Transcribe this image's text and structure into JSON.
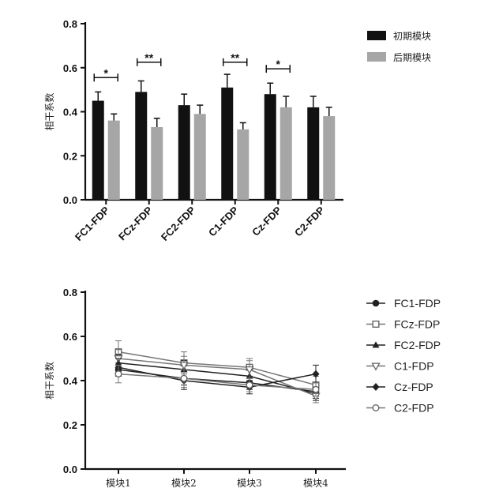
{
  "chart_data": [
    {
      "type": "bar",
      "ylabel": "相干系数",
      "ylim": [
        0,
        0.8
      ],
      "yticks": [
        "0.0",
        "0.2",
        "0.4",
        "0.6",
        "0.8"
      ],
      "ytick_values": [
        0,
        0.2,
        0.4,
        0.6,
        0.8
      ],
      "categories": [
        "FC1-FDP",
        "FCz-FDP",
        "FC2-FDP",
        "C1-FDP",
        "Cz-FDP",
        "C2-FDP"
      ],
      "series": [
        {
          "name": "初期模块",
          "color": "#111111",
          "values": [
            0.45,
            0.49,
            0.43,
            0.51,
            0.48,
            0.42
          ],
          "errors": [
            0.04,
            0.05,
            0.05,
            0.06,
            0.05,
            0.05
          ]
        },
        {
          "name": "后期模块",
          "color": "#a6a6a6",
          "values": [
            0.36,
            0.33,
            0.39,
            0.32,
            0.42,
            0.38
          ],
          "errors": [
            0.03,
            0.04,
            0.04,
            0.03,
            0.05,
            0.04
          ]
        }
      ],
      "significance": [
        {
          "category_index": 0,
          "label": "*",
          "level": 0.555
        },
        {
          "category_index": 1,
          "label": "**",
          "level": 0.625
        },
        {
          "category_index": 3,
          "label": "**",
          "level": 0.625
        },
        {
          "category_index": 4,
          "label": "*",
          "level": 0.595
        }
      ],
      "legend_position": "top-right"
    },
    {
      "type": "line",
      "ylabel": "相干系数",
      "ylim": [
        0,
        0.8
      ],
      "yticks": [
        "0.0",
        "0.2",
        "0.4",
        "0.6",
        "0.8"
      ],
      "ytick_values": [
        0,
        0.2,
        0.4,
        0.6,
        0.8
      ],
      "x": [
        "模块1",
        "模块2",
        "模块3",
        "模块4"
      ],
      "series": [
        {
          "name": "FC1-FDP",
          "marker": "filled-circle",
          "values": [
            0.45,
            0.41,
            0.39,
            0.35
          ],
          "errors": [
            0.03,
            0.03,
            0.03,
            0.03
          ]
        },
        {
          "name": "FCz-FDP",
          "marker": "open-square",
          "values": [
            0.53,
            0.48,
            0.46,
            0.38
          ],
          "errors": [
            0.05,
            0.05,
            0.04,
            0.04
          ]
        },
        {
          "name": "FC2-FDP",
          "marker": "filled-triangle",
          "values": [
            0.48,
            0.45,
            0.42,
            0.34
          ],
          "errors": [
            0.04,
            0.04,
            0.04,
            0.03
          ]
        },
        {
          "name": "C1-FDP",
          "marker": "open-triangle-down",
          "values": [
            0.5,
            0.47,
            0.45,
            0.33
          ],
          "errors": [
            0.04,
            0.04,
            0.04,
            0.03
          ]
        },
        {
          "name": "Cz-FDP",
          "marker": "filled-diamond",
          "values": [
            0.46,
            0.4,
            0.37,
            0.43
          ],
          "errors": [
            0.04,
            0.04,
            0.03,
            0.04
          ]
        },
        {
          "name": "C2-FDP",
          "marker": "open-circle",
          "values": [
            0.43,
            0.41,
            0.38,
            0.36
          ],
          "errors": [
            0.04,
            0.04,
            0.03,
            0.03
          ]
        }
      ],
      "legend_position": "right"
    }
  ]
}
